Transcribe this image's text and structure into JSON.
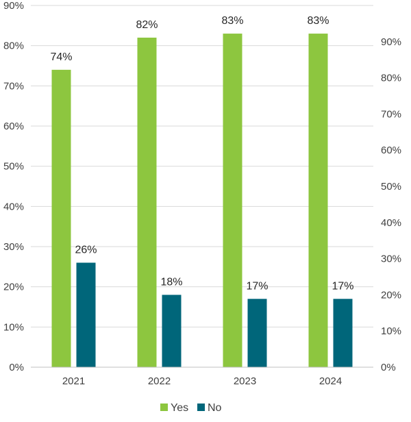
{
  "chart_data": {
    "type": "bar",
    "categories": [
      "2021",
      "2022",
      "2023",
      "2024"
    ],
    "series": [
      {
        "name": "Yes",
        "values": [
          74,
          82,
          83,
          83
        ],
        "color": "#8DC63F"
      },
      {
        "name": "No",
        "values": [
          26,
          18,
          17,
          17
        ],
        "color": "#00667A"
      }
    ],
    "data_labels": {
      "Yes": [
        "74%",
        "82%",
        "83%",
        "83%"
      ],
      "No": [
        "26%",
        "18%",
        "17%",
        "17%"
      ]
    },
    "y_left": {
      "ylim": [
        0,
        90
      ],
      "ticks": [
        0,
        10,
        20,
        30,
        40,
        50,
        60,
        70,
        80,
        90
      ],
      "tick_labels": [
        "0%",
        "10%",
        "20%",
        "30%",
        "40%",
        "50%",
        "60%",
        "70%",
        "80%",
        "90%"
      ]
    },
    "y_right": {
      "ylim": [
        0,
        100
      ],
      "ticks": [
        0,
        10,
        20,
        30,
        40,
        50,
        60,
        70,
        80,
        90
      ],
      "tick_labels": [
        "0%",
        "10%",
        "20%",
        "30%",
        "40%",
        "50%",
        "60%",
        "70%",
        "80%",
        "90%"
      ]
    },
    "title": "",
    "xlabel": "",
    "ylabel": "",
    "grid": true,
    "legend_position": "bottom-center",
    "colors": {
      "gridline": "#D9D9D9",
      "axis": "#BFBFBF",
      "text": "#404040"
    }
  }
}
